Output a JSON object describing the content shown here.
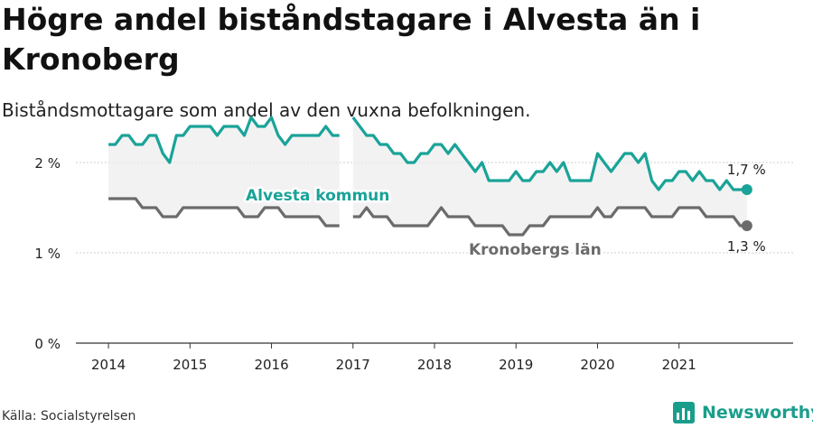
{
  "header": {
    "title": "Högre andel biståndstagare i Alvesta än i Kronoberg",
    "subtitle": "Biståndsmottagare som andel av den vuxna befolkningen."
  },
  "footer": {
    "source": "Källa: Socialstyrelsen",
    "brand": "Newsworthy"
  },
  "colors": {
    "alvesta": "#1aa398",
    "kronoberg": "#6b6b6b",
    "band": "#ececec",
    "brand": "#1a9e8c"
  },
  "chart_data": {
    "type": "line",
    "title": "Högre andel biståndstagare i Alvesta än i Kronoberg",
    "subtitle": "Biståndsmottagare som andel av den vuxna befolkningen.",
    "xlabel": "",
    "ylabel": "",
    "xlim": [
      2013.6,
      2022.4
    ],
    "ylim": [
      0,
      2.2
    ],
    "x_ticks": [
      2014,
      2015,
      2016,
      2017,
      2018,
      2019,
      2020,
      2021
    ],
    "x_tick_labels": [
      "2014",
      "2015",
      "2016",
      "2017",
      "2018",
      "2019",
      "2020",
      "2021"
    ],
    "y_ticks": [
      0,
      1,
      2
    ],
    "y_tick_labels": [
      "0 %",
      "1 %",
      "2 %"
    ],
    "grid": "horizontal",
    "shaded_between_series": true,
    "series": [
      {
        "name": "Alvesta kommun",
        "color": "#1aa398",
        "end_label": "1,7 %",
        "points": [
          [
            2014.0,
            2.2
          ],
          [
            2014.083,
            2.2
          ],
          [
            2014.167,
            2.3
          ],
          [
            2014.25,
            2.3
          ],
          [
            2014.333,
            2.2
          ],
          [
            2014.417,
            2.2
          ],
          [
            2014.5,
            2.3
          ],
          [
            2014.583,
            2.3
          ],
          [
            2014.667,
            2.1
          ],
          [
            2014.75,
            2.0
          ],
          [
            2014.833,
            2.3
          ],
          [
            2014.917,
            2.3
          ],
          [
            2015.0,
            2.4
          ],
          [
            2015.083,
            2.4
          ],
          [
            2015.167,
            2.4
          ],
          [
            2015.25,
            2.4
          ],
          [
            2015.333,
            2.3
          ],
          [
            2015.417,
            2.4
          ],
          [
            2015.5,
            2.4
          ],
          [
            2015.583,
            2.4
          ],
          [
            2015.667,
            2.3
          ],
          [
            2015.75,
            2.5
          ],
          [
            2015.833,
            2.4
          ],
          [
            2015.917,
            2.4
          ],
          [
            2016.0,
            2.5
          ],
          [
            2016.083,
            2.3
          ],
          [
            2016.167,
            2.2
          ],
          [
            2016.25,
            2.3
          ],
          [
            2016.333,
            2.3
          ],
          [
            2016.417,
            2.3
          ],
          [
            2016.5,
            2.3
          ],
          [
            2016.583,
            2.3
          ],
          [
            2016.667,
            2.4
          ],
          [
            2016.75,
            2.3
          ],
          [
            2016.833,
            2.3
          ],
          [
            2016.917,
            null
          ],
          [
            2017.0,
            2.5
          ],
          [
            2017.083,
            2.4
          ],
          [
            2017.167,
            2.3
          ],
          [
            2017.25,
            2.3
          ],
          [
            2017.333,
            2.2
          ],
          [
            2017.417,
            2.2
          ],
          [
            2017.5,
            2.1
          ],
          [
            2017.583,
            2.1
          ],
          [
            2017.667,
            2.0
          ],
          [
            2017.75,
            2.0
          ],
          [
            2017.833,
            2.1
          ],
          [
            2017.917,
            2.1
          ],
          [
            2018.0,
            2.2
          ],
          [
            2018.083,
            2.2
          ],
          [
            2018.167,
            2.1
          ],
          [
            2018.25,
            2.2
          ],
          [
            2018.333,
            2.1
          ],
          [
            2018.417,
            2.0
          ],
          [
            2018.5,
            1.9
          ],
          [
            2018.583,
            2.0
          ],
          [
            2018.667,
            1.8
          ],
          [
            2018.75,
            1.8
          ],
          [
            2018.833,
            1.8
          ],
          [
            2018.917,
            1.8
          ],
          [
            2019.0,
            1.9
          ],
          [
            2019.083,
            1.8
          ],
          [
            2019.167,
            1.8
          ],
          [
            2019.25,
            1.9
          ],
          [
            2019.333,
            1.9
          ],
          [
            2019.417,
            2.0
          ],
          [
            2019.5,
            1.9
          ],
          [
            2019.583,
            2.0
          ],
          [
            2019.667,
            1.8
          ],
          [
            2019.75,
            1.8
          ],
          [
            2019.833,
            1.8
          ],
          [
            2019.917,
            1.8
          ],
          [
            2020.0,
            2.1
          ],
          [
            2020.083,
            2.0
          ],
          [
            2020.167,
            1.9
          ],
          [
            2020.25,
            2.0
          ],
          [
            2020.333,
            2.1
          ],
          [
            2020.417,
            2.1
          ],
          [
            2020.5,
            2.0
          ],
          [
            2020.583,
            2.1
          ],
          [
            2020.667,
            1.8
          ],
          [
            2020.75,
            1.7
          ],
          [
            2020.833,
            1.8
          ],
          [
            2020.917,
            1.8
          ],
          [
            2021.0,
            1.9
          ],
          [
            2021.083,
            1.9
          ],
          [
            2021.167,
            1.8
          ],
          [
            2021.25,
            1.9
          ],
          [
            2021.333,
            1.8
          ],
          [
            2021.417,
            1.8
          ],
          [
            2021.5,
            1.7
          ],
          [
            2021.583,
            1.8
          ],
          [
            2021.667,
            1.7
          ],
          [
            2021.75,
            1.7
          ],
          [
            2021.833,
            1.7
          ]
        ]
      },
      {
        "name": "Kronobergs län",
        "color": "#6b6b6b",
        "end_label": "1,3 %",
        "points": [
          [
            2014.0,
            1.6
          ],
          [
            2014.083,
            1.6
          ],
          [
            2014.167,
            1.6
          ],
          [
            2014.25,
            1.6
          ],
          [
            2014.333,
            1.6
          ],
          [
            2014.417,
            1.5
          ],
          [
            2014.5,
            1.5
          ],
          [
            2014.583,
            1.5
          ],
          [
            2014.667,
            1.4
          ],
          [
            2014.75,
            1.4
          ],
          [
            2014.833,
            1.4
          ],
          [
            2014.917,
            1.5
          ],
          [
            2015.0,
            1.5
          ],
          [
            2015.083,
            1.5
          ],
          [
            2015.167,
            1.5
          ],
          [
            2015.25,
            1.5
          ],
          [
            2015.333,
            1.5
          ],
          [
            2015.417,
            1.5
          ],
          [
            2015.5,
            1.5
          ],
          [
            2015.583,
            1.5
          ],
          [
            2015.667,
            1.4
          ],
          [
            2015.75,
            1.4
          ],
          [
            2015.833,
            1.4
          ],
          [
            2015.917,
            1.5
          ],
          [
            2016.0,
            1.5
          ],
          [
            2016.083,
            1.5
          ],
          [
            2016.167,
            1.4
          ],
          [
            2016.25,
            1.4
          ],
          [
            2016.333,
            1.4
          ],
          [
            2016.417,
            1.4
          ],
          [
            2016.5,
            1.4
          ],
          [
            2016.583,
            1.4
          ],
          [
            2016.667,
            1.3
          ],
          [
            2016.75,
            1.3
          ],
          [
            2016.833,
            1.3
          ],
          [
            2016.917,
            null
          ],
          [
            2017.0,
            1.4
          ],
          [
            2017.083,
            1.4
          ],
          [
            2017.167,
            1.5
          ],
          [
            2017.25,
            1.4
          ],
          [
            2017.333,
            1.4
          ],
          [
            2017.417,
            1.4
          ],
          [
            2017.5,
            1.3
          ],
          [
            2017.583,
            1.3
          ],
          [
            2017.667,
            1.3
          ],
          [
            2017.75,
            1.3
          ],
          [
            2017.833,
            1.3
          ],
          [
            2017.917,
            1.3
          ],
          [
            2018.0,
            1.4
          ],
          [
            2018.083,
            1.5
          ],
          [
            2018.167,
            1.4
          ],
          [
            2018.25,
            1.4
          ],
          [
            2018.333,
            1.4
          ],
          [
            2018.417,
            1.4
          ],
          [
            2018.5,
            1.3
          ],
          [
            2018.583,
            1.3
          ],
          [
            2018.667,
            1.3
          ],
          [
            2018.75,
            1.3
          ],
          [
            2018.833,
            1.3
          ],
          [
            2018.917,
            1.2
          ],
          [
            2019.0,
            1.2
          ],
          [
            2019.083,
            1.2
          ],
          [
            2019.167,
            1.3
          ],
          [
            2019.25,
            1.3
          ],
          [
            2019.333,
            1.3
          ],
          [
            2019.417,
            1.4
          ],
          [
            2019.5,
            1.4
          ],
          [
            2019.583,
            1.4
          ],
          [
            2019.667,
            1.4
          ],
          [
            2019.75,
            1.4
          ],
          [
            2019.833,
            1.4
          ],
          [
            2019.917,
            1.4
          ],
          [
            2020.0,
            1.5
          ],
          [
            2020.083,
            1.4
          ],
          [
            2020.167,
            1.4
          ],
          [
            2020.25,
            1.5
          ],
          [
            2020.333,
            1.5
          ],
          [
            2020.417,
            1.5
          ],
          [
            2020.5,
            1.5
          ],
          [
            2020.583,
            1.5
          ],
          [
            2020.667,
            1.4
          ],
          [
            2020.75,
            1.4
          ],
          [
            2020.833,
            1.4
          ],
          [
            2020.917,
            1.4
          ],
          [
            2021.0,
            1.5
          ],
          [
            2021.083,
            1.5
          ],
          [
            2021.167,
            1.5
          ],
          [
            2021.25,
            1.5
          ],
          [
            2021.333,
            1.4
          ],
          [
            2021.417,
            1.4
          ],
          [
            2021.5,
            1.4
          ],
          [
            2021.583,
            1.4
          ],
          [
            2021.667,
            1.4
          ],
          [
            2021.75,
            1.3
          ],
          [
            2021.833,
            1.3
          ]
        ]
      }
    ]
  }
}
